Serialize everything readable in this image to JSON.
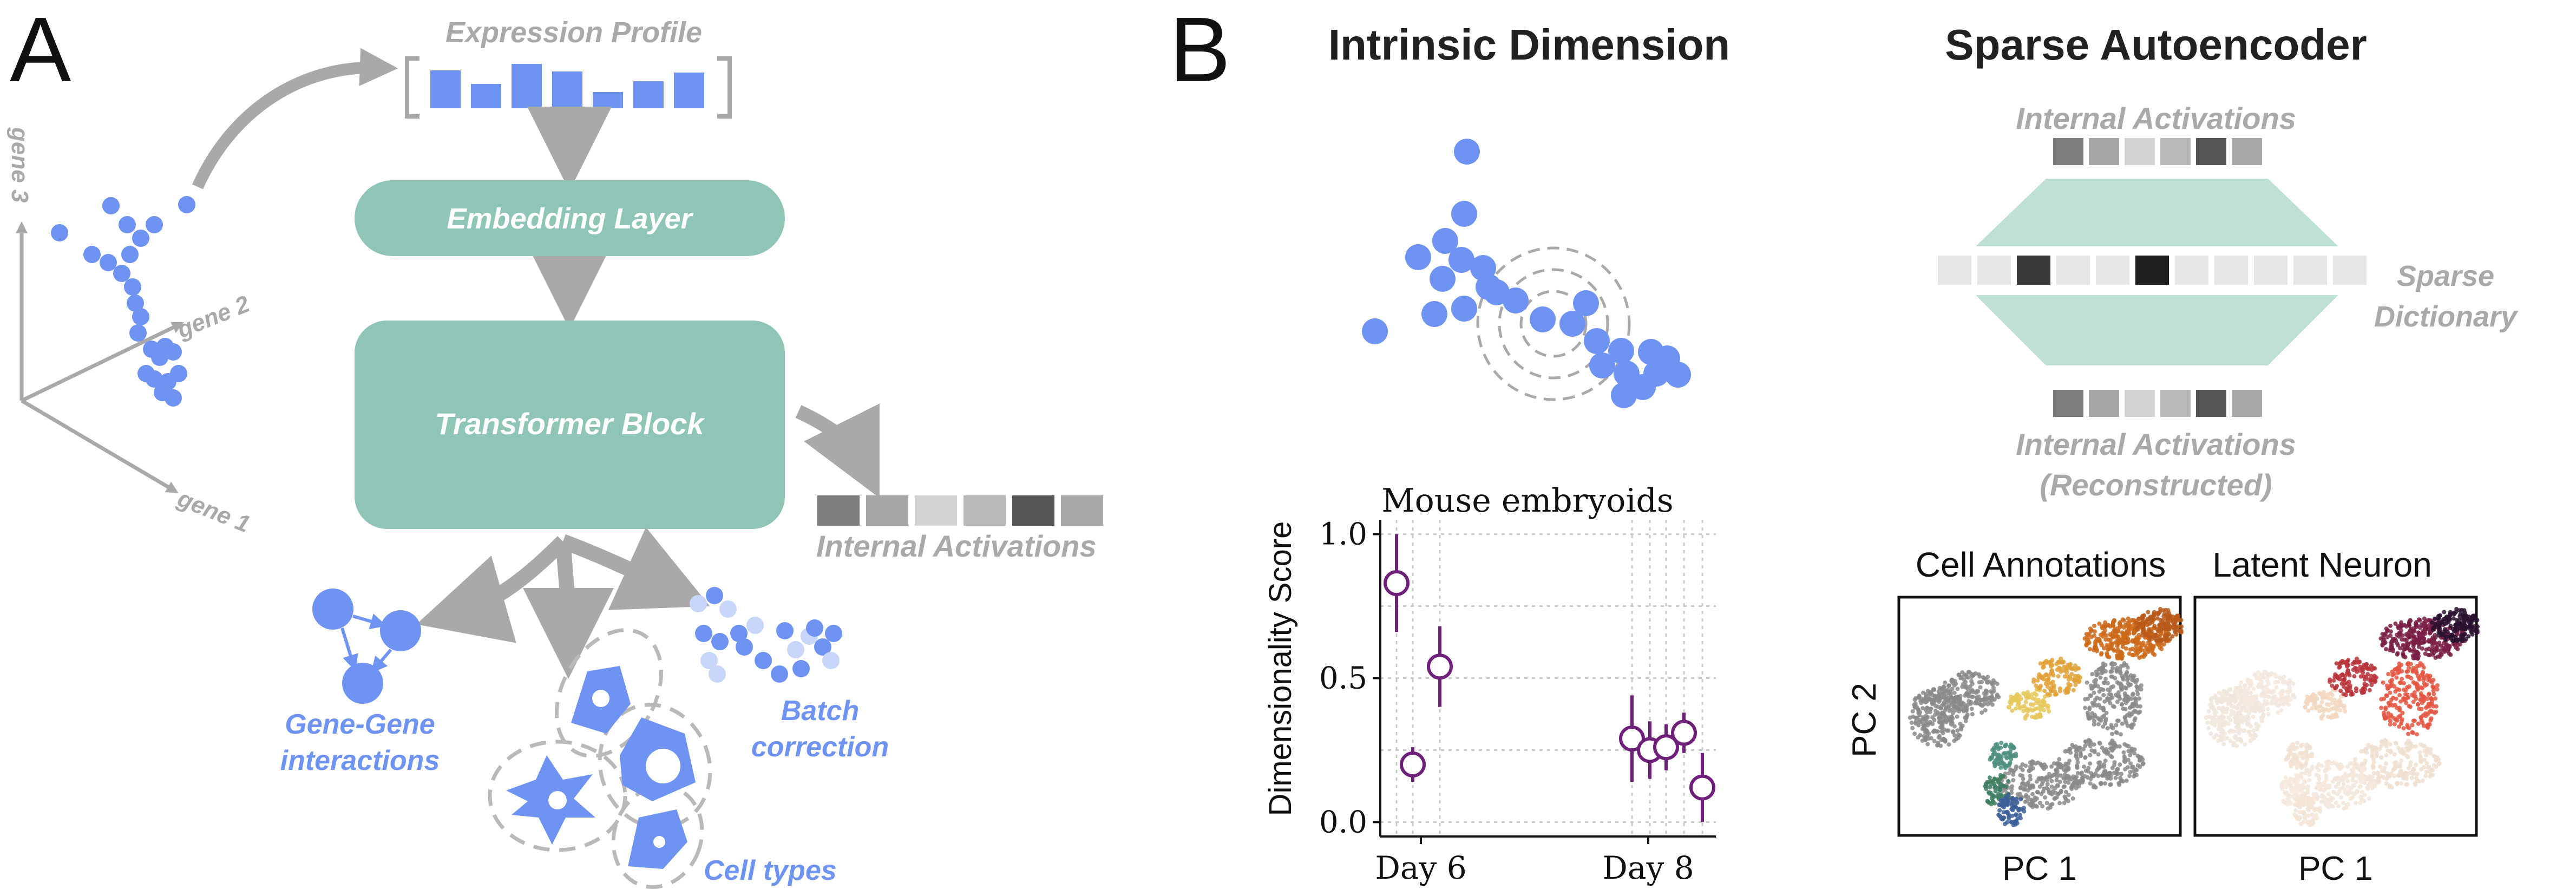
{
  "panel_a": {
    "letter": "A",
    "expression_profile": "Expression Profile",
    "embedding_layer": "Embedding Layer",
    "transformer_block": "Transformer Block",
    "internal_activations": "Internal Activations",
    "axes": {
      "gene1": "gene 1",
      "gene2": "gene 2",
      "gene3": "gene 3"
    },
    "tasks": {
      "gene_gene_line1": "Gene-Gene",
      "gene_gene_line2": "interactions",
      "batch_line1": "Batch",
      "batch_line2": "correction",
      "cell_types": "Cell types"
    }
  },
  "panel_b": {
    "letter": "B",
    "intrinsic_dimension_title": "Intrinsic Dimension",
    "sparse_autoencoder_title": "Sparse Autoencoder",
    "sae": {
      "internal_activations": "Internal Activations",
      "sparse_line1": "Sparse",
      "sparse_line2": "Dictionary",
      "reconstructed_line1": "Internal Activations",
      "reconstructed_line2": "(Reconstructed)"
    },
    "umaps": {
      "cell_annotations": "Cell Annotations",
      "latent_neuron": "Latent Neuron",
      "xlabel": "PC 1",
      "ylabel": "PC 2"
    }
  },
  "colors": {
    "blue": "#6f93f2",
    "teal": "#8fc5b6",
    "gray_arrow": "#a9a9a9",
    "purple": "#6e1f7a"
  },
  "chart_data": {
    "type": "scatter",
    "title": "Mouse embryoids",
    "xlabel": "",
    "ylabel": "Dimensionality Score",
    "x_ticks": [
      "Day 6",
      "Day 8"
    ],
    "y_ticks": [
      "0.0",
      "0.5",
      "1.0"
    ],
    "ylim": [
      -0.05,
      1.05
    ],
    "grid": true,
    "marker": "open-circle",
    "series": [
      {
        "points": [
          {
            "group": "Day 6",
            "y": 0.83,
            "err": 0.17
          },
          {
            "group": "Day 6",
            "y": 0.2,
            "err": 0.06
          },
          {
            "group": "Day 6",
            "y": 0.54,
            "err": 0.14
          },
          {
            "group": "Day 8",
            "y": 0.29,
            "err": 0.15
          },
          {
            "group": "Day 8",
            "y": 0.25,
            "err": 0.1
          },
          {
            "group": "Day 8",
            "y": 0.26,
            "err": 0.08
          },
          {
            "group": "Day 8",
            "y": 0.31,
            "err": 0.07
          },
          {
            "group": "Day 8",
            "y": 0.12,
            "err": 0.12
          }
        ]
      }
    ]
  }
}
